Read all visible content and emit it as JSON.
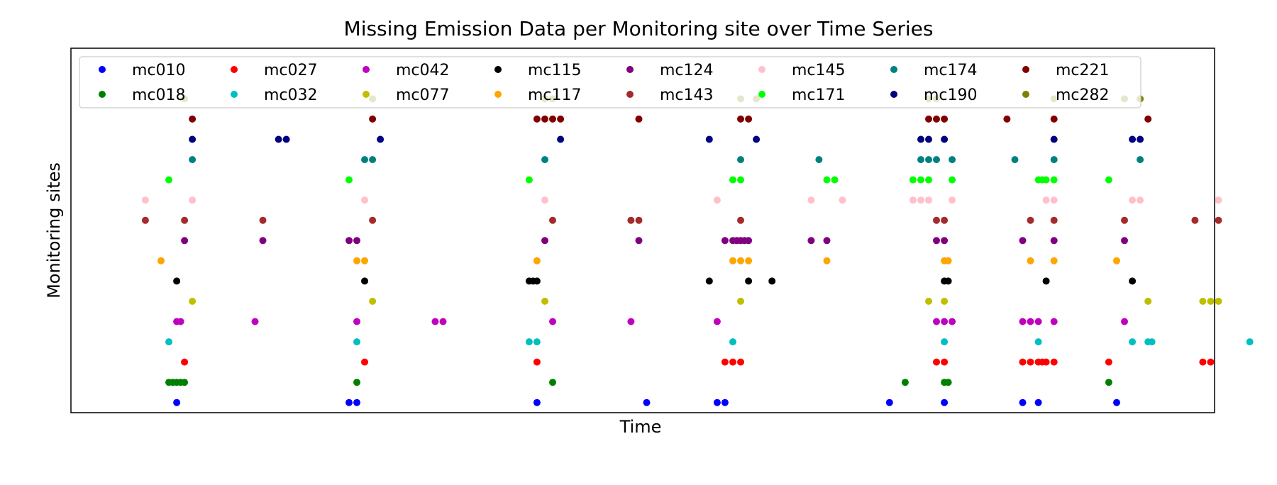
{
  "chart_data": {
    "type": "scatter",
    "title": "Missing Emission Data per Monitoring site over Time Series",
    "xlabel": "Time",
    "ylabel": "Monitoring sites",
    "x_unit": "index",
    "xlim": [
      -6.5,
      139.5
    ],
    "ylim": [
      -0.5,
      17.5
    ],
    "legend": {
      "location": "upper-left",
      "columns": 8
    },
    "grid": false,
    "series": [
      {
        "name": "mc010",
        "color": "#0000ff",
        "y": 0,
        "x": [
          7,
          29,
          30,
          53,
          67,
          76,
          77,
          98,
          105,
          115,
          117,
          127
        ]
      },
      {
        "name": "mc018",
        "color": "#008000",
        "y": 1,
        "x": [
          6,
          6.5,
          7,
          7.5,
          8,
          30,
          55,
          100,
          105,
          105.5,
          126
        ]
      },
      {
        "name": "mc027",
        "color": "#ff0000",
        "y": 2,
        "x": [
          8,
          31,
          53,
          77,
          78,
          79,
          104,
          105,
          115,
          116,
          117,
          117.5,
          118,
          119,
          126,
          138,
          139
        ]
      },
      {
        "name": "mc032",
        "color": "#00bfbf",
        "y": 3,
        "x": [
          6,
          30,
          52,
          53,
          78,
          105,
          117,
          129,
          131,
          131.5,
          144
        ]
      },
      {
        "name": "mc042",
        "color": "#bf00bf",
        "y": 4,
        "x": [
          7,
          7.5,
          17,
          30,
          40,
          41,
          55,
          65,
          76,
          104,
          105,
          106,
          115,
          116,
          117,
          119,
          128
        ]
      },
      {
        "name": "mc077",
        "color": "#bfbf00",
        "y": 5,
        "x": [
          9,
          32,
          54,
          79,
          103,
          105,
          131,
          138,
          139,
          140
        ]
      },
      {
        "name": "mc115",
        "color": "#000000",
        "y": 6,
        "x": [
          7,
          31,
          52,
          52.5,
          53,
          75,
          80,
          83,
          105,
          105.5,
          118,
          129
        ]
      },
      {
        "name": "mc117",
        "color": "#ffa500",
        "y": 7,
        "x": [
          5,
          30,
          31,
          53,
          78,
          79,
          80,
          90,
          105,
          105.5,
          116,
          119,
          127
        ]
      },
      {
        "name": "mc124",
        "color": "#800080",
        "y": 8,
        "x": [
          8,
          18,
          29,
          30,
          54,
          66,
          77,
          78,
          78.5,
          79,
          79.5,
          80,
          88,
          90,
          104,
          105,
          115,
          119,
          128
        ]
      },
      {
        "name": "mc143",
        "color": "#a52a2a",
        "y": 9,
        "x": [
          3,
          8,
          18,
          32,
          55,
          65,
          66,
          79,
          104,
          105,
          116,
          119,
          128,
          137,
          140
        ]
      },
      {
        "name": "mc145",
        "color": "#ffc0cb",
        "y": 10,
        "x": [
          3,
          9,
          31,
          54,
          76,
          88,
          92,
          101,
          102,
          103,
          106,
          118,
          119,
          129,
          130,
          140
        ]
      },
      {
        "name": "mc171",
        "color": "#00ff00",
        "y": 11,
        "x": [
          6,
          29,
          52,
          78,
          79,
          90,
          91,
          101,
          102,
          103,
          106,
          117,
          117.5,
          118,
          119,
          126
        ]
      },
      {
        "name": "mc174",
        "color": "#008080",
        "y": 12,
        "x": [
          9,
          31,
          32,
          54,
          79,
          89,
          102,
          103,
          104,
          106,
          114,
          119,
          130
        ]
      },
      {
        "name": "mc190",
        "color": "#000080",
        "y": 13,
        "x": [
          9,
          20,
          21,
          33,
          56,
          75,
          81,
          102,
          103,
          105,
          119,
          129,
          130
        ]
      },
      {
        "name": "mc221",
        "color": "#800000",
        "y": 14,
        "x": [
          9,
          32,
          53,
          54,
          55,
          56,
          66,
          79,
          80,
          103,
          104,
          105,
          113,
          119,
          131
        ]
      },
      {
        "name": "mc282",
        "color": "#808000",
        "y": 15,
        "x": [
          8,
          32,
          54,
          55,
          79,
          81,
          103,
          104,
          119,
          128,
          130
        ]
      }
    ]
  }
}
